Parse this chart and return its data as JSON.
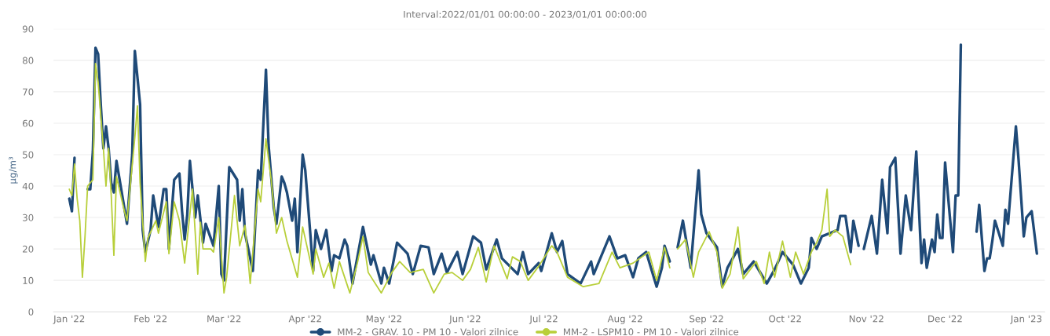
{
  "chart_data": {
    "type": "line",
    "title": "Interval:2022/01/01 00:00:00 - 2023/01/01 00:00:00",
    "ylabel": "µg/m³",
    "ylim": [
      0,
      90
    ],
    "yticks": [
      0,
      10,
      20,
      30,
      40,
      50,
      60,
      70,
      80,
      90
    ],
    "xlim": [
      "2021-12-26",
      "2023-01-08"
    ],
    "xticks": [
      {
        "value": "2022-01-01",
        "label": "Jan '22"
      },
      {
        "value": "2022-02-01",
        "label": "Feb '22"
      },
      {
        "value": "2022-03-01",
        "label": "Mar '22"
      },
      {
        "value": "2022-04-01",
        "label": "Apr '22"
      },
      {
        "value": "2022-05-01",
        "label": "May '22"
      },
      {
        "value": "2022-06-01",
        "label": "Jun '22"
      },
      {
        "value": "2022-07-01",
        "label": "Jul '22"
      },
      {
        "value": "2022-08-01",
        "label": "Aug '22"
      },
      {
        "value": "2022-09-01",
        "label": "Sep '22"
      },
      {
        "value": "2022-10-01",
        "label": "Oct '22"
      },
      {
        "value": "2022-11-01",
        "label": "Nov '22"
      },
      {
        "value": "2022-12-01",
        "label": "Dec '22"
      },
      {
        "value": "2023-01-01",
        "label": "Jan '23"
      }
    ],
    "grid": "y",
    "legend": "bottom",
    "line_style": "solid",
    "series": [
      {
        "name": "MM-2 - GRAV. 10 - PM 10 - Valori zilnice",
        "color": "#1f4a78",
        "x": [
          "2022-01-01",
          "2022-01-02",
          "2022-01-03",
          "2022-01-04",
          "2022-01-08",
          "2022-01-09",
          "2022-01-10",
          "2022-01-11",
          "2022-01-12",
          "2022-01-13",
          "2022-01-14",
          "2022-01-15",
          "2022-01-16",
          "2022-01-17",
          "2022-01-18",
          "2022-01-19",
          "2022-01-20",
          "2022-01-22",
          "2022-01-23",
          "2022-01-25",
          "2022-01-26",
          "2022-01-28",
          "2022-01-29",
          "2022-01-30",
          "2022-02-01",
          "2022-02-02",
          "2022-02-04",
          "2022-02-06",
          "2022-02-07",
          "2022-02-08",
          "2022-02-10",
          "2022-02-12",
          "2022-02-13",
          "2022-02-14",
          "2022-02-15",
          "2022-02-16",
          "2022-02-18",
          "2022-02-19",
          "2022-02-21",
          "2022-02-22",
          "2022-02-25",
          "2022-02-27",
          "2022-02-28",
          "2022-03-01",
          "2022-03-03",
          "2022-03-06",
          "2022-03-07",
          "2022-03-08",
          "2022-03-09",
          "2022-03-12",
          "2022-03-14",
          "2022-03-15",
          "2022-03-17",
          "2022-03-18",
          "2022-03-20",
          "2022-03-21",
          "2022-03-23",
          "2022-03-24",
          "2022-03-25",
          "2022-03-27",
          "2022-03-28",
          "2022-03-29",
          "2022-03-31",
          "2022-04-01",
          "2022-04-03",
          "2022-04-04",
          "2022-04-05",
          "2022-04-07",
          "2022-04-09",
          "2022-04-11",
          "2022-04-12",
          "2022-04-14",
          "2022-04-16",
          "2022-04-17",
          "2022-04-19",
          "2022-04-23",
          "2022-04-26",
          "2022-04-27",
          "2022-04-30",
          "2022-05-01",
          "2022-05-03",
          "2022-05-06",
          "2022-05-10",
          "2022-05-12",
          "2022-05-15",
          "2022-05-18",
          "2022-05-20",
          "2022-05-23",
          "2022-05-25",
          "2022-05-29",
          "2022-05-31",
          "2022-06-04",
          "2022-06-07",
          "2022-06-09",
          "2022-06-13",
          "2022-06-15",
          "2022-06-21",
          "2022-06-23",
          "2022-06-25",
          "2022-06-29",
          "2022-06-30",
          "2022-07-04",
          "2022-07-06",
          "2022-07-08",
          "2022-07-10",
          "2022-07-15",
          "2022-07-19",
          "2022-07-20",
          "2022-07-26",
          "2022-07-29",
          "2022-08-01",
          "2022-08-04",
          "2022-08-06",
          "2022-08-09",
          "2022-08-13",
          "2022-08-15",
          "2022-08-16",
          "2022-08-18",
          "2022-08-19",
          "2022-08-21",
          "2022-08-23",
          "2022-08-26",
          "2022-08-29",
          "2022-08-30",
          "2022-09-01",
          "2022-09-05",
          "2022-09-07",
          "2022-09-09",
          "2022-09-13",
          "2022-09-15",
          "2022-09-19",
          "2022-09-24",
          "2022-09-27",
          "2022-09-30",
          "2022-10-04",
          "2022-10-07",
          "2022-10-10",
          "2022-10-11",
          "2022-10-13",
          "2022-10-15",
          "2022-10-21",
          "2022-10-22",
          "2022-10-24",
          "2022-10-26",
          "2022-10-27",
          "2022-10-29",
          "2022-10-30",
          "2022-10-31",
          "2022-11-03",
          "2022-11-05",
          "2022-11-07",
          "2022-11-09",
          "2022-11-10",
          "2022-11-12",
          "2022-11-14",
          "2022-11-16",
          "2022-11-18",
          "2022-11-20",
          "2022-11-22",
          "2022-11-23",
          "2022-11-24",
          "2022-11-26",
          "2022-11-27",
          "2022-11-28",
          "2022-11-29",
          "2022-11-30",
          "2022-12-01",
          "2022-12-04",
          "2022-12-05",
          "2022-12-06",
          "2022-12-07",
          "2022-12-08",
          "2022-12-13",
          "2022-12-14",
          "2022-12-16",
          "2022-12-17",
          "2022-12-18",
          "2022-12-19",
          "2022-12-20",
          "2022-12-23",
          "2022-12-24",
          "2022-12-25",
          "2022-12-28",
          "2022-12-29",
          "2022-12-31",
          "2023-01-01",
          "2023-01-03",
          "2023-01-05"
        ],
        "values": [
          36,
          32,
          49,
          null,
          39,
          39,
          51,
          84,
          82,
          66,
          52,
          59,
          52,
          41,
          38,
          48,
          43,
          33,
          28,
          50,
          83,
          66,
          26,
          19,
          26,
          37,
          27,
          39,
          39,
          20,
          42,
          44,
          32,
          23,
          31,
          48,
          30,
          37,
          22,
          28,
          21,
          40,
          12,
          10,
          46,
          42,
          29,
          39,
          25,
          13,
          45,
          42,
          77,
          53,
          33,
          28,
          43,
          41,
          38,
          29,
          36,
          19,
          50,
          45,
          24,
          13,
          26,
          20,
          26,
          13,
          18,
          17,
          23,
          21,
          9,
          27,
          15,
          18,
          9,
          14,
          9,
          22,
          18.5,
          12,
          21,
          20.5,
          12,
          18.5,
          12.5,
          19,
          12,
          24,
          22,
          13.5,
          23,
          17,
          12,
          19,
          12,
          15.5,
          13,
          25,
          19,
          22.5,
          12,
          9,
          16,
          12,
          24,
          17,
          18,
          11,
          17,
          19,
          8,
          14,
          21,
          16,
          null,
          20.5,
          29,
          14,
          45,
          31,
          25,
          20.5,
          8,
          14,
          20,
          12,
          16,
          9,
          13.5,
          19,
          15,
          9,
          14,
          23.5,
          20,
          24,
          26,
          30.5,
          30.5,
          19,
          29,
          21,
          null,
          20,
          30.5,
          18.5,
          42,
          25,
          46,
          49,
          18.5,
          37,
          26,
          51,
          15.5,
          23,
          14,
          23,
          19,
          31,
          23.5,
          23.5,
          47.5,
          19,
          37,
          37,
          85,
          null,
          25.5,
          34,
          13,
          17,
          17,
          22.5,
          29,
          21,
          32.5,
          28,
          59,
          48.5,
          24,
          30,
          32,
          18.5
        ]
      },
      {
        "name": "MM-2 - LSPM10 - PM 10 - Valori zilnice",
        "color": "#b8cf3a",
        "x": [
          "2022-01-01",
          "2022-01-02",
          "2022-01-03",
          "2022-01-04",
          "2022-01-05",
          "2022-01-06",
          "2022-01-07",
          "2022-01-08",
          "2022-01-10",
          "2022-01-11",
          "2022-01-12",
          "2022-01-14",
          "2022-01-15",
          "2022-01-16",
          "2022-01-17",
          "2022-01-18",
          "2022-01-19",
          "2022-01-22",
          "2022-01-23",
          "2022-01-26",
          "2022-01-27",
          "2022-01-28",
          "2022-01-30",
          "2022-01-31",
          "2022-02-03",
          "2022-02-04",
          "2022-02-07",
          "2022-02-08",
          "2022-02-10",
          "2022-02-12",
          "2022-02-14",
          "2022-02-17",
          "2022-02-19",
          "2022-02-20",
          "2022-02-21",
          "2022-02-24",
          "2022-02-25",
          "2022-02-27",
          "2022-03-01",
          "2022-03-02",
          "2022-03-05",
          "2022-03-07",
          "2022-03-09",
          "2022-03-11",
          "2022-03-14",
          "2022-03-15",
          "2022-03-17",
          "2022-03-19",
          "2022-03-21",
          "2022-03-23",
          "2022-03-25",
          "2022-03-29",
          "2022-03-31",
          "2022-04-04",
          "2022-04-05",
          "2022-04-08",
          "2022-04-10",
          "2022-04-12",
          "2022-04-14",
          "2022-04-18",
          "2022-04-21",
          "2022-04-23",
          "2022-04-25",
          "2022-04-30",
          "2022-05-04",
          "2022-05-07",
          "2022-05-11",
          "2022-05-16",
          "2022-05-20",
          "2022-05-24",
          "2022-05-27",
          "2022-05-31",
          "2022-06-03",
          "2022-06-06",
          "2022-06-09",
          "2022-06-12",
          "2022-06-17",
          "2022-06-19",
          "2022-06-22",
          "2022-06-25",
          "2022-06-29",
          "2022-07-04",
          "2022-07-06",
          "2022-07-10",
          "2022-07-16",
          "2022-07-22",
          "2022-07-27",
          "2022-07-30",
          "2022-08-04",
          "2022-08-10",
          "2022-08-13",
          "2022-08-16",
          "2022-08-18",
          "2022-08-19",
          "2022-08-21",
          "2022-08-24",
          "2022-08-27",
          "2022-08-29",
          "2022-09-02",
          "2022-09-05",
          "2022-09-07",
          "2022-09-10",
          "2022-09-13",
          "2022-09-15",
          "2022-09-20",
          "2022-09-23",
          "2022-09-25",
          "2022-09-27",
          "2022-09-30",
          "2022-10-03",
          "2022-10-05",
          "2022-10-08",
          "2022-10-11",
          "2022-10-13",
          "2022-10-15",
          "2022-10-17",
          "2022-10-18",
          "2022-10-20",
          "2022-10-23",
          "2022-10-26"
        ],
        "values": [
          39,
          37,
          47,
          36,
          29,
          11,
          24,
          40,
          42,
          79,
          73,
          52,
          40,
          52,
          37,
          18,
          43,
          32,
          29,
          55.5,
          65.5,
          41,
          16,
          23.5,
          29,
          25,
          35,
          18.5,
          35,
          29,
          15.5,
          39,
          12,
          28.5,
          20,
          20,
          19,
          30,
          6,
          11,
          37,
          21,
          27.5,
          9,
          39,
          35,
          55,
          42,
          25,
          30,
          22.5,
          11,
          27,
          12,
          20,
          11,
          15.5,
          7.5,
          16,
          6,
          16,
          24,
          12.5,
          6,
          12.5,
          16,
          12.5,
          13.5,
          6,
          12,
          12.5,
          10,
          13.5,
          20.5,
          9.5,
          21,
          10.5,
          17.5,
          16,
          10,
          14.5,
          21,
          19,
          11,
          8,
          9,
          19,
          14,
          15.5,
          19,
          10,
          20.5,
          14,
          null,
          20,
          23,
          11,
          19,
          25.5,
          19,
          7.5,
          12,
          27,
          10.5,
          16,
          9,
          19,
          11,
          22.5,
          11,
          19,
          12,
          19,
          22,
          26,
          39,
          24,
          26,
          24,
          15
        ]
      }
    ]
  }
}
